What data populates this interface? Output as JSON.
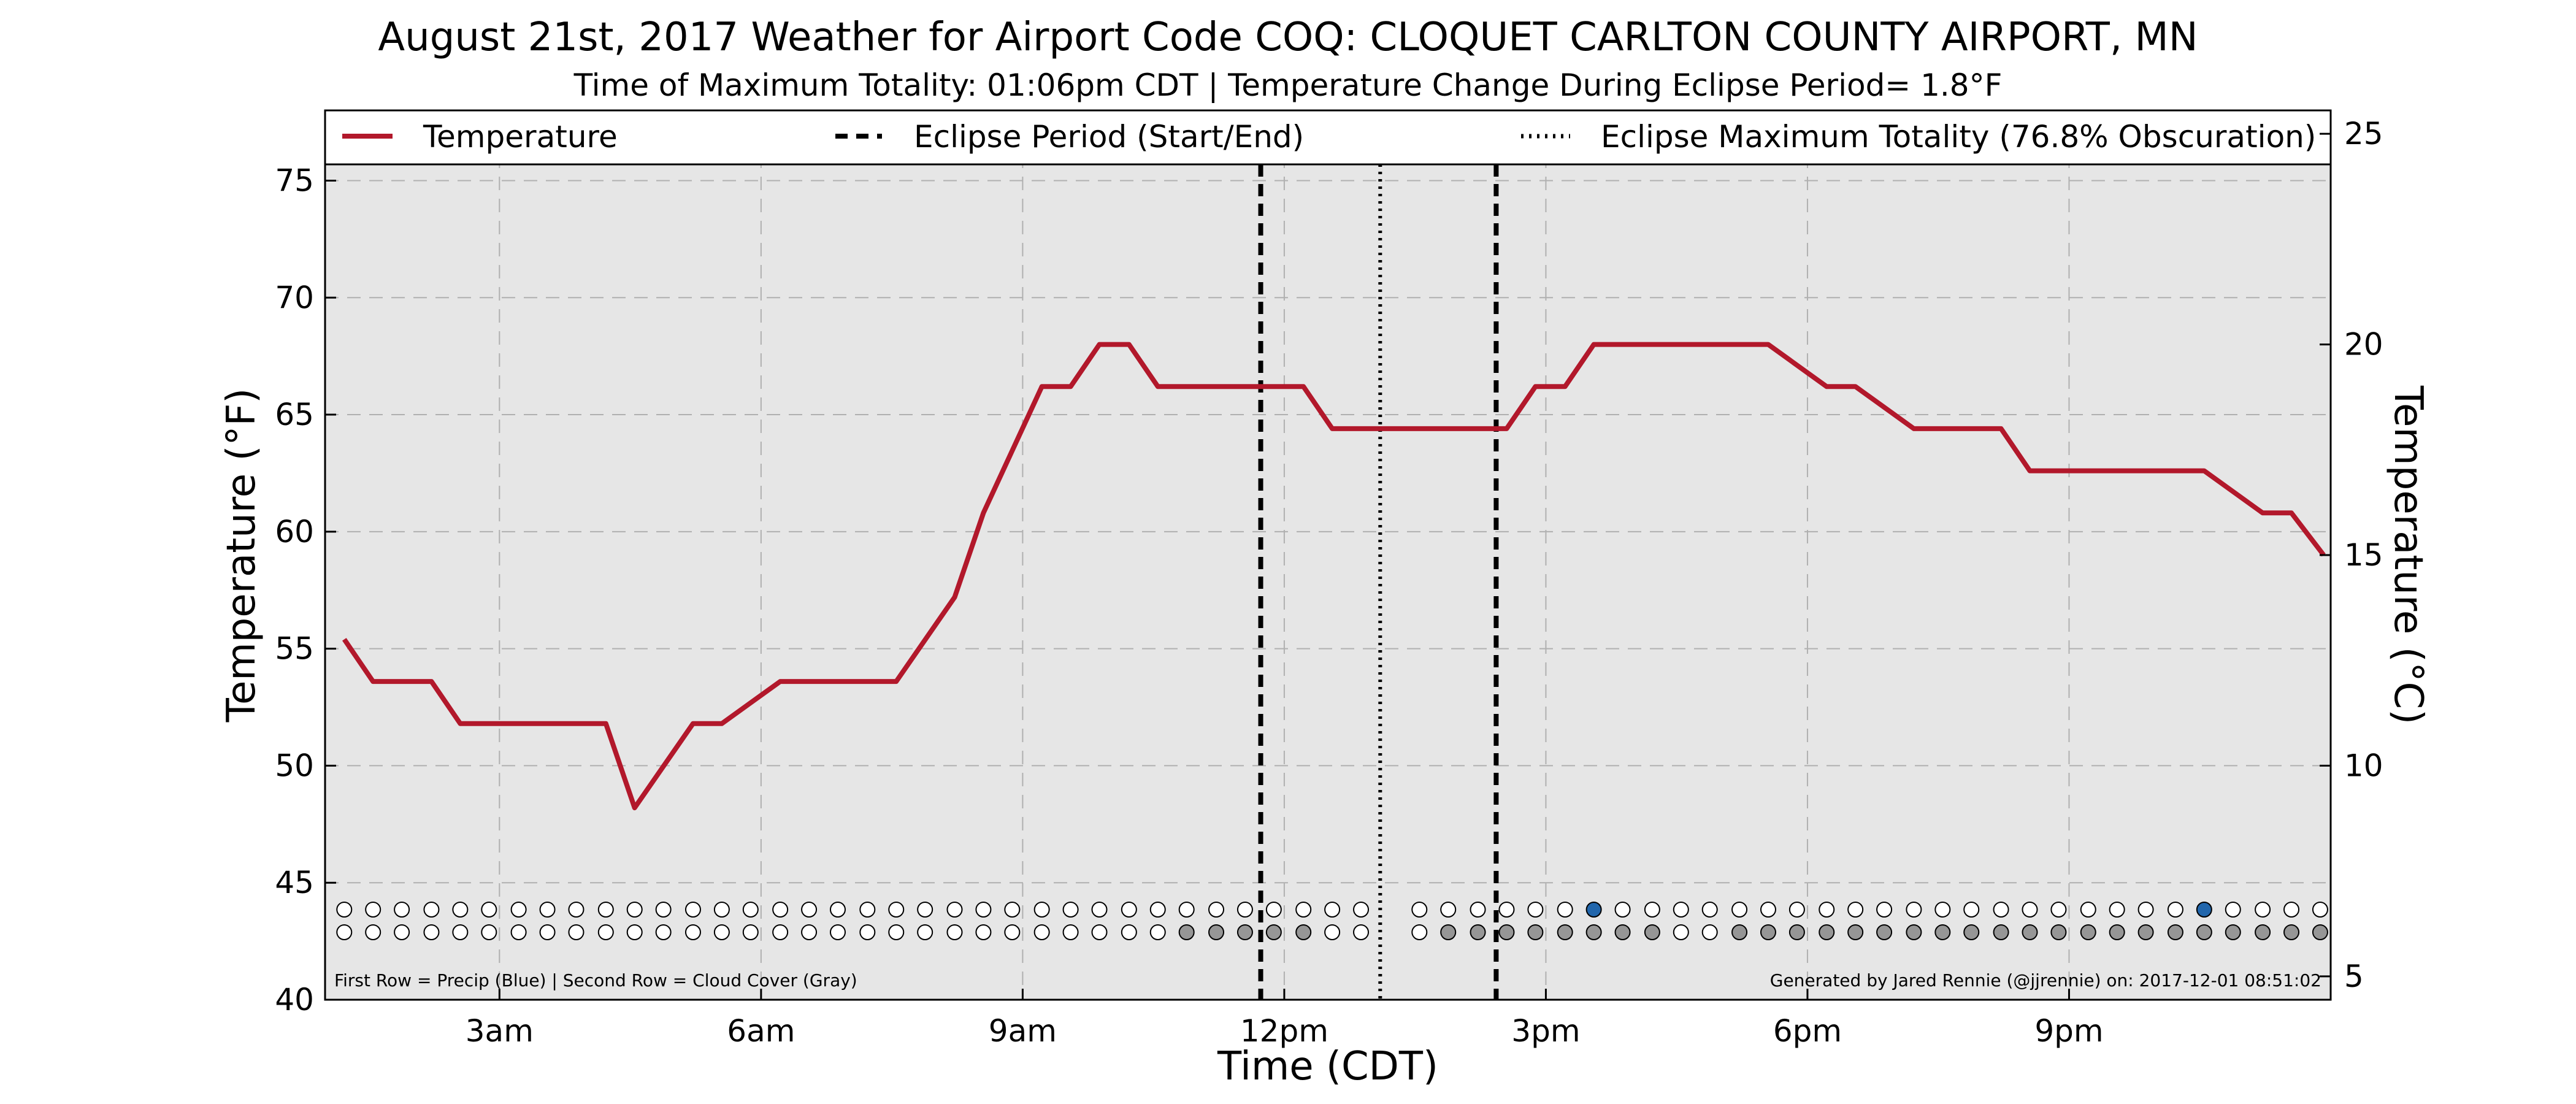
{
  "chart_data": {
    "type": "line",
    "title": "August 21st, 2017 Weather for Airport Code COQ: CLOQUET CARLTON COUNTY AIRPORT, MN",
    "subtitle": "Time of Maximum Totality: 01:06pm CDT | Temperature Change During Eclipse Period= 1.8°F",
    "xlabel": "Time (CDT)",
    "ylabel": "Temperature (°F)",
    "ylabel_right": "Temperature (°C)",
    "x_unit": "hours after midnight",
    "xlim": [
      1,
      24
    ],
    "ylim": [
      40,
      78
    ],
    "x_ticks": [
      {
        "x": 3,
        "label": "3am"
      },
      {
        "x": 6,
        "label": "6am"
      },
      {
        "x": 9,
        "label": "9am"
      },
      {
        "x": 12,
        "label": "12pm"
      },
      {
        "x": 15,
        "label": "3pm"
      },
      {
        "x": 18,
        "label": "6pm"
      },
      {
        "x": 21,
        "label": "9pm"
      }
    ],
    "y_ticks": [
      40,
      45,
      50,
      55,
      60,
      65,
      70,
      75
    ],
    "y_ticks_right": [
      5,
      10,
      15,
      20,
      25
    ],
    "grid": true,
    "legend_placement": "top",
    "legend": [
      {
        "label": "Temperature",
        "style": "solid",
        "color": "#b2182b"
      },
      {
        "label": "Eclipse Period (Start/End)",
        "style": "dashed",
        "color": "#000000"
      },
      {
        "label": "Eclipse Maximum Totality (76.8% Obscuration)",
        "style": "dotted",
        "color": "#000000"
      }
    ],
    "series": [
      {
        "name": "Temperature",
        "color": "#b2182b",
        "x": [
          1.22,
          1.55,
          2.22,
          2.55,
          3.22,
          3.55,
          4.22,
          4.55,
          5.22,
          5.55,
          6.22,
          6.55,
          7.22,
          7.55,
          8.22,
          8.55,
          9.22,
          9.55,
          9.88,
          10.22,
          10.55,
          11.22,
          11.55,
          12.22,
          12.55,
          13.22,
          13.55,
          14.22,
          14.55,
          14.88,
          15.22,
          15.55,
          16.22,
          16.55,
          17.22,
          17.55,
          18.22,
          18.55,
          19.22,
          19.55,
          20.22,
          20.55,
          21.22,
          21.55,
          22.22,
          22.55,
          23.22,
          23.55,
          23.92
        ],
        "y": [
          55.4,
          53.6,
          53.6,
          51.8,
          51.8,
          51.8,
          51.8,
          48.2,
          51.8,
          51.8,
          53.6,
          53.6,
          53.6,
          53.6,
          57.2,
          60.8,
          66.2,
          66.2,
          68.0,
          68.0,
          66.2,
          66.2,
          66.2,
          66.2,
          64.4,
          64.4,
          64.4,
          64.4,
          64.4,
          66.2,
          66.2,
          68.0,
          68.0,
          68.0,
          68.0,
          68.0,
          66.2,
          66.2,
          64.4,
          64.4,
          64.4,
          62.6,
          62.6,
          62.6,
          62.6,
          62.6,
          60.8,
          60.8,
          59.0
        ]
      }
    ],
    "eclipse_start_x": 11.73,
    "eclipse_end_x": 14.43,
    "eclipse_max_x": 13.1,
    "dot_rows": {
      "x": [
        1.22,
        1.55,
        1.88,
        2.22,
        2.55,
        2.88,
        3.22,
        3.55,
        3.88,
        4.22,
        4.55,
        4.88,
        5.22,
        5.55,
        5.88,
        6.22,
        6.55,
        6.88,
        7.22,
        7.55,
        7.88,
        8.22,
        8.55,
        8.88,
        9.22,
        9.55,
        9.88,
        10.22,
        10.55,
        10.88,
        11.22,
        11.55,
        11.88,
        12.22,
        12.55,
        12.88,
        13.55,
        13.88,
        14.22,
        14.55,
        14.88,
        15.22,
        15.55,
        15.88,
        16.22,
        16.55,
        16.88,
        17.22,
        17.55,
        17.88,
        18.22,
        18.55,
        18.88,
        19.22,
        19.55,
        19.88,
        20.22,
        20.55,
        20.88,
        21.22,
        21.55,
        21.88,
        22.22,
        22.55,
        22.88,
        23.22,
        23.55,
        23.88
      ],
      "precip": [
        0,
        0,
        0,
        0,
        0,
        0,
        0,
        0,
        0,
        0,
        0,
        0,
        0,
        0,
        0,
        0,
        0,
        0,
        0,
        0,
        0,
        0,
        0,
        0,
        0,
        0,
        0,
        0,
        0,
        0,
        0,
        0,
        0,
        0,
        0,
        0,
        0,
        0,
        0,
        0,
        0,
        0,
        1,
        0,
        0,
        0,
        0,
        0,
        0,
        0,
        0,
        0,
        0,
        0,
        0,
        0,
        0,
        0,
        0,
        0,
        0,
        0,
        0,
        1,
        0,
        0,
        0,
        0
      ],
      "cloud": [
        0,
        0,
        0,
        0,
        0,
        0,
        0,
        0,
        0,
        0,
        0,
        0,
        0,
        0,
        0,
        0,
        0,
        0,
        0,
        0,
        0,
        0,
        0,
        0,
        0,
        0,
        0,
        0,
        0,
        1,
        1,
        1,
        1,
        1,
        0,
        0,
        0,
        1,
        1,
        1,
        1,
        1,
        1,
        1,
        1,
        0,
        0,
        1,
        1,
        1,
        1,
        1,
        1,
        1,
        1,
        1,
        1,
        1,
        1,
        1,
        1,
        1,
        1,
        1,
        1,
        1,
        1,
        1
      ],
      "precip_color": "#2166ac",
      "cloud_color": "#969696"
    },
    "footer_left": "First Row = Precip (Blue) | Second Row = Cloud Cover (Gray)",
    "footer_right": "Generated by Jared Rennie (@jjrennie) on: 2017-12-01 08:51:02"
  },
  "colors": {
    "plot_background": "#e6e6e6",
    "temperature_line": "#b2182b",
    "grid": "#b0b0b0"
  }
}
